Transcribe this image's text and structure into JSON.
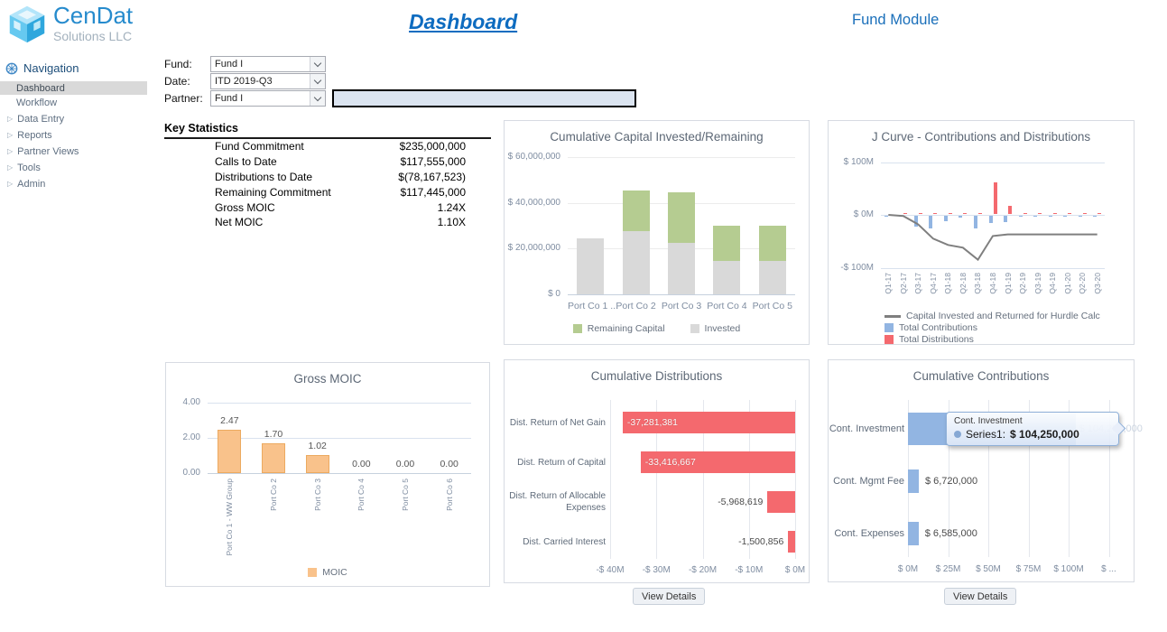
{
  "header": {
    "logo_title": "CenDat",
    "logo_subtitle": "Solutions LLC",
    "page_title": "Dashboard",
    "module_title": "Fund Module"
  },
  "sidebar": {
    "header": "Navigation",
    "items": [
      {
        "label": "Dashboard",
        "selected": true,
        "expandable": false
      },
      {
        "label": "Workflow",
        "selected": false,
        "expandable": false
      },
      {
        "label": "Data Entry",
        "selected": false,
        "expandable": true
      },
      {
        "label": "Reports",
        "selected": false,
        "expandable": true
      },
      {
        "label": "Partner Views",
        "selected": false,
        "expandable": true
      },
      {
        "label": "Tools",
        "selected": false,
        "expandable": true
      },
      {
        "label": "Admin",
        "selected": false,
        "expandable": true
      }
    ]
  },
  "filters": {
    "rows": [
      {
        "label": "Fund:",
        "value": "Fund I",
        "name": "fund-select"
      },
      {
        "label": "Date:",
        "value": "ITD 2019-Q3",
        "name": "date-select"
      },
      {
        "label": "Partner:",
        "value": "Fund I",
        "name": "partner-select"
      }
    ]
  },
  "key_statistics": {
    "title": "Key Statistics",
    "rows": [
      {
        "label": "Fund Commitment",
        "value": "$235,000,000"
      },
      {
        "label": "Calls to Date",
        "value": "$117,555,000"
      },
      {
        "label": "Distributions to Date",
        "value": "$(78,167,523)"
      },
      {
        "label": "Remaining Commitment",
        "value": "$117,445,000"
      },
      {
        "label": "Gross MOIC",
        "value": "1.24X"
      },
      {
        "label": "Net MOIC",
        "value": "1.10X"
      }
    ]
  },
  "labels": {
    "view_details": "View Details"
  },
  "chart_data": {
    "cumulative_capital": {
      "type": "bar",
      "stacked": true,
      "title": "Cumulative Capital Invested/Remaining",
      "categories": [
        "Port Co 1 ...",
        "Port Co 2",
        "Port Co 3",
        "Port Co 4",
        "Port Co 5"
      ],
      "series": [
        {
          "name": "Invested",
          "color": "#d9d9d9",
          "values": [
            24500000,
            27500000,
            22500000,
            14750000,
            14750000
          ]
        },
        {
          "name": "Remaining Capital",
          "color": "#b5cc91",
          "values": [
            0,
            18000000,
            22000000,
            15250000,
            15250000
          ]
        }
      ],
      "legend": [
        "Remaining Capital",
        "Invested"
      ],
      "y_tick_labels": [
        "$ 60,000,000",
        "$ 40,000,000",
        "$ 20,000,000",
        "$ 0"
      ],
      "y_tick_values": [
        60000000,
        40000000,
        20000000,
        0
      ],
      "ylim": [
        0,
        60000000
      ],
      "legend_position": "bottom"
    },
    "j_curve": {
      "type": "bar+line",
      "title": "J Curve - Contributions and Distributions",
      "unit": "USD millions (estimated from plot)",
      "categories": [
        "Q1-17",
        "Q2-17",
        "Q3-17",
        "Q4-17",
        "Q1-18",
        "Q2-18",
        "Q3-18",
        "Q4-18",
        "Q1-19",
        "Q2-19",
        "Q3-19",
        "Q4-19",
        "Q1-20",
        "Q2-20",
        "Q3-20"
      ],
      "series": [
        {
          "name": "Capital Invested and Returned for Hurdle Calc",
          "type": "line",
          "color": "#7f7f7f",
          "values": [
            0,
            -2,
            -18,
            -45,
            -57,
            -62,
            -85,
            -40,
            -37,
            -37,
            -37,
            -37,
            -37,
            -37,
            -37
          ]
        },
        {
          "name": "Total Contributions",
          "type": "bar",
          "color": "#92b5e2",
          "values": [
            -3,
            -1,
            -22,
            -24,
            -11,
            -5,
            -25,
            -14,
            -13,
            -2,
            -2,
            -2,
            -2,
            -2,
            -2
          ]
        },
        {
          "name": "Total Distributions",
          "type": "bar",
          "color": "#f4696e",
          "values": [
            0,
            1,
            1,
            1,
            1,
            1,
            1,
            60,
            17,
            1,
            1,
            1,
            1,
            1,
            1
          ]
        }
      ],
      "y_tick_labels": [
        "$ 100M",
        "$ 0M",
        "-$ 100M"
      ],
      "y_tick_values": [
        100,
        0,
        -100
      ],
      "ylim": [
        -100,
        100
      ],
      "legend_position": "bottom-left"
    },
    "gross_moic": {
      "type": "bar",
      "title": "Gross MOIC",
      "categories": [
        "Port Co 1 - WW Group",
        "Port Co 2",
        "Port Co 3",
        "Port Co 4",
        "Port Co 5",
        "Port Co 6"
      ],
      "values": [
        2.47,
        1.7,
        1.02,
        0.0,
        0.0,
        0.0
      ],
      "labels": [
        "2.47",
        "1.70",
        "1.02",
        "0.00",
        "0.00",
        "0.00"
      ],
      "color": "#f9c28b",
      "legend": [
        "MOIC"
      ],
      "y_tick_labels": [
        "4.00",
        "2.00",
        "0.00"
      ],
      "y_tick_values": [
        4,
        2,
        0
      ],
      "ylim": [
        0,
        4
      ],
      "legend_position": "bottom"
    },
    "cumulative_distributions": {
      "type": "bar-horizontal",
      "title": "Cumulative Distributions",
      "categories": [
        "Dist. Return of Net Gain",
        "Dist. Return of Capital",
        "Dist. Return of Allocable\nExpenses",
        "Dist. Carried Interest"
      ],
      "values": [
        -37281381,
        -33416667,
        -5968619,
        -1500856
      ],
      "labels": [
        "-37,281,381",
        "-33,416,667",
        "-5,968,619",
        "-1,500,856"
      ],
      "color": "#f4696e",
      "x_ticks": [
        "-$ 40M",
        "-$ 30M",
        "-$ 20M",
        "-$ 10M",
        "$ 0M"
      ],
      "x_tick_values": [
        -40000000,
        -30000000,
        -20000000,
        -10000000,
        0
      ],
      "xlim": [
        -43000000,
        0
      ]
    },
    "cumulative_contributions": {
      "type": "bar-horizontal",
      "title": "Cumulative Contributions",
      "categories": [
        "Cont. Investment",
        "Cont. Mgmt Fee",
        "Cont. Expenses"
      ],
      "values": [
        104250000,
        6720000,
        6585000
      ],
      "labels": [
        "$ 104,250,000",
        "$ 6,720,000",
        "$ 6,585,000"
      ],
      "color": "#92b5e2",
      "x_ticks": [
        "$ 0M",
        "$ 25M",
        "$ 50M",
        "$ 75M",
        "$ 100M",
        "$ ..."
      ],
      "x_tick_values": [
        0,
        25000000,
        50000000,
        75000000,
        100000000,
        125000000
      ],
      "xlim": [
        0,
        130000000
      ],
      "tooltip": {
        "title": "Cont. Investment",
        "series_label": "Series1:",
        "value": "$ 104,250,000"
      }
    }
  }
}
